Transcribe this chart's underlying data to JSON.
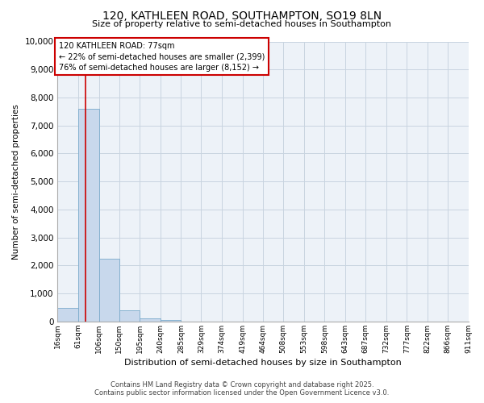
{
  "title_line1": "120, KATHLEEN ROAD, SOUTHAMPTON, SO19 8LN",
  "title_line2": "Size of property relative to semi-detached houses in Southampton",
  "xlabel": "Distribution of semi-detached houses by size in Southampton",
  "ylabel": "Number of semi-detached properties",
  "footer_line1": "Contains HM Land Registry data © Crown copyright and database right 2025.",
  "footer_line2": "Contains public sector information licensed under the Open Government Licence v3.0.",
  "property_label": "120 KATHLEEN ROAD: 77sqm",
  "smaller_label": "← 22% of semi-detached houses are smaller (2,399)",
  "larger_label": "76% of semi-detached houses are larger (8,152) →",
  "property_size": 77,
  "bin_edges": [
    16,
    61,
    106,
    150,
    195,
    240,
    285,
    329,
    374,
    419,
    464,
    508,
    553,
    598,
    643,
    687,
    732,
    777,
    822,
    866,
    911
  ],
  "bin_counts": [
    500,
    7600,
    2250,
    400,
    100,
    50,
    0,
    0,
    0,
    0,
    0,
    0,
    0,
    0,
    0,
    0,
    0,
    0,
    0,
    0
  ],
  "bar_color": "#c8d8ec",
  "bar_edge_color": "#7aaacb",
  "vline_color": "#cc0000",
  "annotation_box_color": "#cc0000",
  "grid_color": "#c8d4e0",
  "background_color": "#edf2f8",
  "ylim": [
    0,
    10000
  ],
  "yticks": [
    0,
    1000,
    2000,
    3000,
    4000,
    5000,
    6000,
    7000,
    8000,
    9000,
    10000
  ]
}
